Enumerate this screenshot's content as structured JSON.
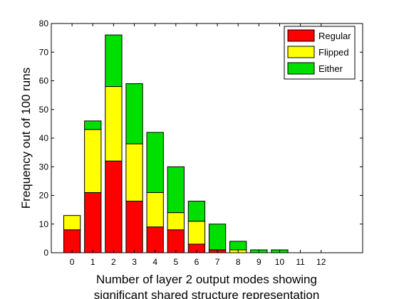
{
  "chart_data": {
    "type": "bar",
    "stacked": true,
    "categories": [
      "0",
      "1",
      "2",
      "3",
      "4",
      "5",
      "6",
      "7",
      "8",
      "9",
      "10",
      "11",
      "12"
    ],
    "series": [
      {
        "name": "Regular",
        "color": "#ff0000",
        "values": [
          8,
          21,
          32,
          18,
          9,
          8,
          3,
          1,
          0,
          0,
          0,
          0,
          0
        ]
      },
      {
        "name": "Flipped",
        "color": "#ffff00",
        "values": [
          5,
          22,
          26,
          20,
          12,
          6,
          8,
          0,
          1,
          0,
          0,
          0,
          0
        ]
      },
      {
        "name": "Either",
        "color": "#00e000",
        "values": [
          0,
          3,
          18,
          21,
          21,
          16,
          7,
          9,
          3,
          1,
          1,
          0,
          0
        ]
      }
    ],
    "xlabel_line1": "Number of layer 2 output modes showing",
    "xlabel_line2": "significant shared structure representation",
    "ylabel": "Frequency out of 100 runs",
    "ylim": [
      0,
      80
    ],
    "yticks": [
      "0",
      "10",
      "20",
      "30",
      "40",
      "50",
      "60",
      "70",
      "80"
    ],
    "xlim": [
      -1,
      14
    ],
    "legend_position": "top-right",
    "grid": false
  }
}
